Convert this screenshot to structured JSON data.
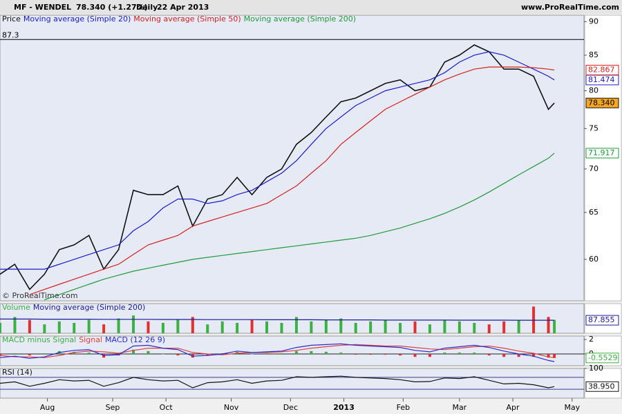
{
  "header": {
    "symbol": "MF - WENDEL",
    "quote": "78.340 (+1.27%)",
    "period": "Daily",
    "date": "22 Apr 2013",
    "site": "www.ProRealTime.com"
  },
  "chart_data": [
    {
      "type": "line",
      "log_scale": true,
      "watermark": "© ProRealTime.com",
      "hline": 87.3,
      "xlim": [
        0,
        197
      ],
      "xticks": [
        {
          "value": 16,
          "label": "Aug"
        },
        {
          "value": 38,
          "label": "Sep"
        },
        {
          "value": 56,
          "label": "Oct"
        },
        {
          "value": 78,
          "label": "Nov"
        },
        {
          "value": 98,
          "label": "Dec"
        },
        {
          "value": 116,
          "label": "2013"
        },
        {
          "value": 136,
          "label": "Feb"
        },
        {
          "value": 155,
          "label": "Mar"
        },
        {
          "value": 173,
          "label": "Apr"
        },
        {
          "value": 193,
          "label": "May"
        }
      ],
      "ylim": [
        55.9,
        91
      ],
      "yticks": [
        60,
        65,
        70,
        75,
        80,
        85,
        90
      ],
      "x": [
        0,
        5,
        10,
        15,
        20,
        25,
        30,
        35,
        40,
        45,
        50,
        55,
        60,
        65,
        70,
        75,
        80,
        85,
        90,
        95,
        100,
        105,
        110,
        115,
        120,
        125,
        130,
        135,
        140,
        145,
        150,
        155,
        160,
        165,
        170,
        175,
        180,
        185,
        187
      ],
      "series": [
        {
          "name": "Price",
          "color": "#111111",
          "tag": "#f5a623",
          "values": [
            58.5,
            59.5,
            57,
            58.5,
            61,
            61.5,
            62.5,
            59,
            61,
            67.5,
            67,
            67,
            68,
            63.5,
            66.5,
            67,
            69,
            67,
            69,
            70,
            73,
            74.5,
            76.5,
            78.5,
            79,
            80,
            81,
            81.5,
            80,
            80.5,
            84,
            85,
            86.5,
            85.5,
            83,
            83,
            82,
            77.5,
            78.34
          ],
          "value_labels": [
            null,
            null,
            null,
            null,
            null,
            null,
            null,
            null,
            null,
            null,
            null,
            null,
            null,
            null,
            null,
            null,
            null,
            null,
            null,
            null,
            null,
            null,
            null,
            null,
            null,
            null,
            null,
            null,
            null,
            null,
            null,
            null,
            null,
            null,
            null,
            null,
            null,
            null,
            "78.340"
          ]
        },
        {
          "name": "Moving average (Simple 20)",
          "color": "#1a1acc",
          "tag": "#ffffff",
          "values": [
            59,
            59,
            59,
            59,
            59.5,
            60,
            60.5,
            61,
            61.5,
            63,
            64,
            65.5,
            66.5,
            66.5,
            66,
            66.3,
            67,
            67.5,
            68.5,
            69.5,
            71,
            73,
            75,
            76.5,
            78,
            79,
            80,
            80.5,
            81,
            81.5,
            82.5,
            84,
            85,
            85.5,
            85,
            84,
            83,
            82,
            81.474
          ]
        },
        {
          "name": "Moving average (Simple 50)",
          "color": "#d42020",
          "tag": "#ffffff",
          "values": [
            null,
            null,
            56.5,
            57,
            57.5,
            58,
            58.5,
            59,
            59.5,
            60.5,
            61.5,
            62,
            62.5,
            63.5,
            64,
            64.5,
            65,
            65.5,
            66,
            67,
            68,
            69.5,
            71,
            73,
            74.5,
            76,
            77.5,
            78.5,
            79.5,
            80.5,
            81.5,
            82.3,
            83,
            83.3,
            83.3,
            83.3,
            83.2,
            83,
            82.867
          ]
        },
        {
          "name": "Moving average (Simple 200)",
          "color": "#1e9a3a",
          "tag": "#ffffff",
          "values": [
            null,
            null,
            null,
            56,
            56.5,
            57,
            57.5,
            58,
            58.4,
            58.8,
            59.1,
            59.4,
            59.7,
            60,
            60.2,
            60.4,
            60.6,
            60.8,
            61,
            61.2,
            61.4,
            61.6,
            61.8,
            62,
            62.2,
            62.5,
            62.9,
            63.3,
            63.8,
            64.3,
            64.9,
            65.6,
            66.4,
            67.3,
            68.3,
            69.3,
            70.3,
            71.3,
            71.917
          ]
        }
      ]
    },
    {
      "type": "bar",
      "ylim": [
        0,
        200
      ],
      "series": [
        {
          "name": "Volume",
          "style": "bar",
          "color": "#3cb043",
          "negative_color": "#e03030",
          "values": [
            70,
            110,
            90,
            60,
            80,
            70,
            90,
            60,
            100,
            120,
            80,
            70,
            90,
            110,
            60,
            80,
            70,
            90,
            80,
            70,
            110,
            80,
            90,
            100,
            70,
            80,
            90,
            70,
            80,
            60,
            90,
            80,
            70,
            60,
            80,
            90,
            180,
            110,
            90
          ]
        },
        {
          "name": "Moving average (Simple 200)",
          "style": "line",
          "color": "#1a1a99",
          "tag": "#ffffff",
          "values": [
            96,
            96,
            96,
            95,
            95,
            95,
            95,
            94,
            94,
            94,
            94,
            93,
            93,
            93,
            92,
            92,
            92,
            92,
            91,
            91,
            91,
            91,
            90,
            90,
            90,
            90,
            89,
            89,
            89,
            89,
            89,
            88.5,
            88.5,
            88.3,
            88.2,
            88.1,
            88,
            87.9,
            87.855
          ]
        }
      ]
    },
    {
      "type": "bar",
      "ylim": [
        -1.62,
        2.48
      ],
      "yticks": [
        2,
        0
      ],
      "series": [
        {
          "name": "MACD minus Signal",
          "style": "bar",
          "color": "#3cb043",
          "negative_color": "#e03030",
          "tag": "#ffffff",
          "values": [
            -0.3,
            0.1,
            -0.2,
            0.1,
            0.4,
            0.3,
            0.2,
            -0.5,
            -0.2,
            0.6,
            0.4,
            0,
            -0.2,
            -0.5,
            -0.2,
            0.1,
            0.3,
            0,
            0.1,
            0.1,
            0.4,
            0.4,
            0.3,
            0.2,
            -0.1,
            -0.1,
            -0.1,
            -0.2,
            -0.4,
            -0.4,
            0.2,
            0.2,
            0.2,
            -0.2,
            -0.4,
            -0.4,
            -0.4,
            -0.5,
            -0.5529
          ]
        },
        {
          "name": "Signal",
          "style": "line",
          "color": "#e04040",
          "values": [
            -0.2,
            -0.4,
            -0.4,
            -0.5,
            -0.2,
            0.2,
            0.4,
            0.3,
            0.1,
            0.5,
            0.8,
            0.8,
            0.8,
            0.2,
            0,
            -0.1,
            0.1,
            0.2,
            0.2,
            0.3,
            0.5,
            0.8,
            1.0,
            1.2,
            1.3,
            1.2,
            1.1,
            1.1,
            0.9,
            0.7,
            0.6,
            0.8,
            1.0,
            1.1,
            0.8,
            0.4,
            0.1,
            -0.4,
            -0.5
          ]
        },
        {
          "name": "MACD (12 26 9)",
          "style": "line",
          "color": "#2a2acc",
          "values": [
            -0.5,
            -0.3,
            -0.6,
            -0.4,
            0.2,
            0.5,
            0.6,
            -0.2,
            -0.1,
            1.1,
            1.2,
            0.8,
            0.6,
            -0.3,
            -0.2,
            0,
            0.4,
            0.2,
            0.3,
            0.4,
            0.9,
            1.2,
            1.3,
            1.4,
            1.2,
            1.1,
            1.0,
            0.9,
            0.5,
            0.3,
            0.8,
            1.0,
            1.2,
            0.9,
            0.4,
            0,
            -0.3,
            -0.9,
            -1.05
          ]
        }
      ]
    },
    {
      "type": "line",
      "ylim": [
        0,
        100
      ],
      "yticks": [
        100
      ],
      "levels": [
        70,
        30
      ],
      "series": [
        {
          "name": "RSI (14)",
          "color": "#111111",
          "tag": "#ffffff",
          "values": [
            50,
            55,
            40,
            50,
            62,
            58,
            60,
            40,
            52,
            70,
            62,
            58,
            60,
            35,
            52,
            55,
            62,
            50,
            58,
            60,
            72,
            70,
            72,
            74,
            70,
            68,
            66,
            62,
            55,
            56,
            68,
            66,
            72,
            60,
            48,
            50,
            45,
            35,
            38.95
          ],
          "value_labels": [
            null,
            null,
            null,
            null,
            null,
            null,
            null,
            null,
            null,
            null,
            null,
            null,
            null,
            null,
            null,
            null,
            null,
            null,
            null,
            null,
            null,
            null,
            null,
            null,
            null,
            null,
            null,
            null,
            null,
            null,
            null,
            null,
            null,
            null,
            null,
            null,
            null,
            null,
            "38.950"
          ]
        }
      ]
    }
  ]
}
